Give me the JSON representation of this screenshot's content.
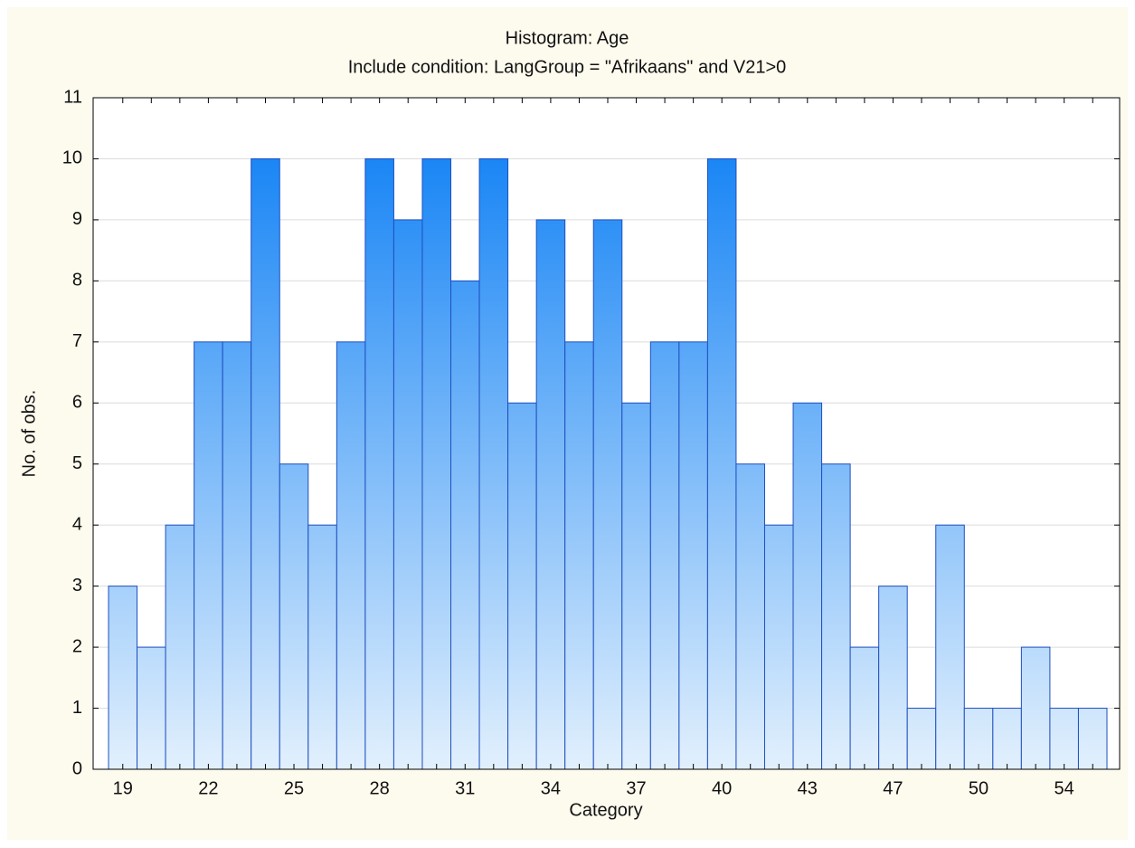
{
  "chart_data": {
    "type": "bar",
    "title": "Histogram: Age",
    "subtitle": "Include condition: LangGroup = \"Afrikaans\" and V21>0",
    "x_label": "Category",
    "y_label": "No. of obs.",
    "categories": [
      "19",
      null,
      null,
      "22",
      null,
      null,
      "25",
      null,
      null,
      "28",
      null,
      null,
      "31",
      null,
      null,
      "34",
      null,
      null,
      "37",
      null,
      null,
      "40",
      null,
      null,
      "43",
      null,
      null,
      "47",
      null,
      null,
      "50",
      null,
      null,
      "54",
      null
    ],
    "values": [
      3,
      2,
      4,
      7,
      7,
      10,
      5,
      4,
      7,
      10,
      9,
      10,
      8,
      10,
      6,
      9,
      7,
      9,
      6,
      7,
      7,
      10,
      5,
      4,
      6,
      5,
      2,
      3,
      1,
      4,
      1,
      1,
      2,
      1,
      1
    ],
    "color": "#1a86f5",
    "ylim": [
      0,
      11
    ],
    "yticks": [
      0,
      1,
      2,
      3,
      4,
      5,
      6,
      7,
      8,
      9,
      10,
      11
    ],
    "grid": true
  }
}
